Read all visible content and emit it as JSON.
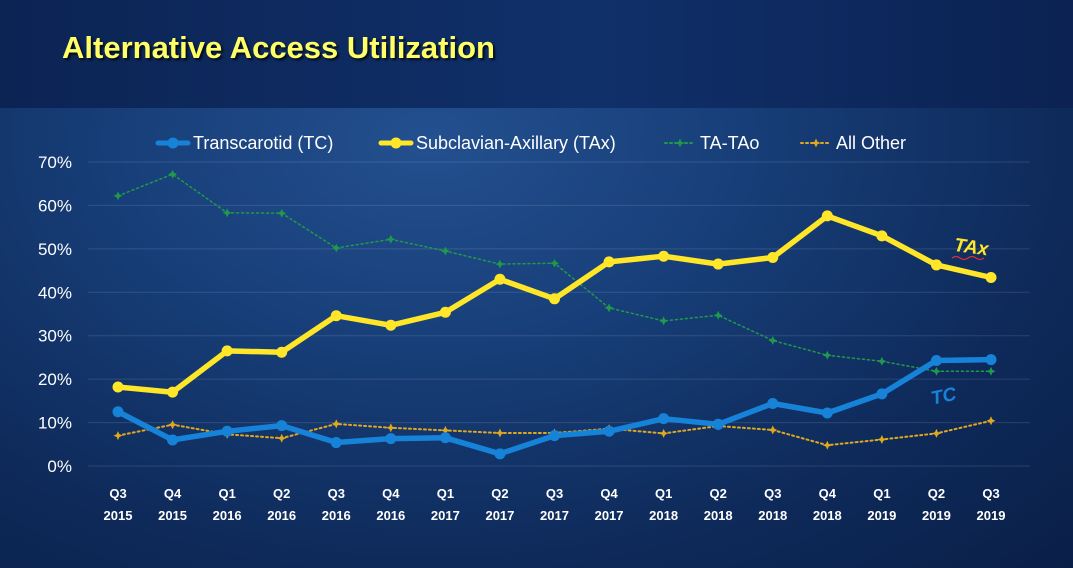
{
  "slide": {
    "title": "Alternative Access Utilization"
  },
  "colors": {
    "tc": "#1683d8",
    "tax": "#ffe629",
    "tatao": "#1f9a4a",
    "other": "#e0a81c"
  },
  "chart_data": {
    "type": "line",
    "title": "Alternative Access Utilization",
    "xlabel": "",
    "ylabel": "",
    "ylim": [
      0,
      70
    ],
    "ytick_labels": [
      "0%",
      "10%",
      "20%",
      "30%",
      "40%",
      "50%",
      "60%",
      "70%"
    ],
    "grid": "horizontal",
    "legend_position": "top",
    "categories": [
      [
        "Q3",
        "2015"
      ],
      [
        "Q4",
        "2015"
      ],
      [
        "Q1",
        "2016"
      ],
      [
        "Q2",
        "2016"
      ],
      [
        "Q3",
        "2016"
      ],
      [
        "Q4",
        "2016"
      ],
      [
        "Q1",
        "2017"
      ],
      [
        "Q2",
        "2017"
      ],
      [
        "Q3",
        "2017"
      ],
      [
        "Q4",
        "2017"
      ],
      [
        "Q1",
        "2018"
      ],
      [
        "Q2",
        "2018"
      ],
      [
        "Q3",
        "2018"
      ],
      [
        "Q4",
        "2018"
      ],
      [
        "Q1",
        "2019"
      ],
      [
        "Q2",
        "2019"
      ],
      [
        "Q3",
        "2019"
      ]
    ],
    "series": [
      {
        "key": "tc",
        "name": "Transcarotid (TC)",
        "style": "solid-thick",
        "marker": "circle",
        "values": [
          12.5,
          6.0,
          8.0,
          9.3,
          5.4,
          6.3,
          6.5,
          2.8,
          7.0,
          8.0,
          10.9,
          9.6,
          14.4,
          12.2,
          16.6,
          24.3,
          24.5
        ]
      },
      {
        "key": "tax",
        "name": "Subclavian-Axillary (TAx)",
        "style": "solid-thick",
        "marker": "circle",
        "values": [
          18.2,
          17.0,
          26.5,
          26.2,
          34.6,
          32.4,
          35.4,
          43.0,
          38.5,
          47.0,
          48.3,
          46.5,
          48.0,
          57.6,
          53.0,
          46.3,
          43.4
        ]
      },
      {
        "key": "tatao",
        "name": "TA-TAo",
        "style": "dotted",
        "marker": "star",
        "values": [
          62.2,
          67.2,
          58.3,
          58.2,
          50.2,
          52.2,
          49.5,
          46.5,
          46.7,
          36.4,
          33.4,
          34.7,
          28.9,
          25.5,
          24.1,
          21.8,
          21.8
        ]
      },
      {
        "key": "other",
        "name": "All Other",
        "style": "dotted",
        "marker": "star",
        "values": [
          7.0,
          9.5,
          7.3,
          6.4,
          9.7,
          8.8,
          8.2,
          7.6,
          7.6,
          8.6,
          7.5,
          9.2,
          8.3,
          4.8,
          6.1,
          7.5,
          10.4
        ]
      }
    ],
    "annotations": [
      {
        "text": "TAx",
        "series": "tax"
      },
      {
        "text": "TC",
        "series": "tc"
      }
    ]
  }
}
